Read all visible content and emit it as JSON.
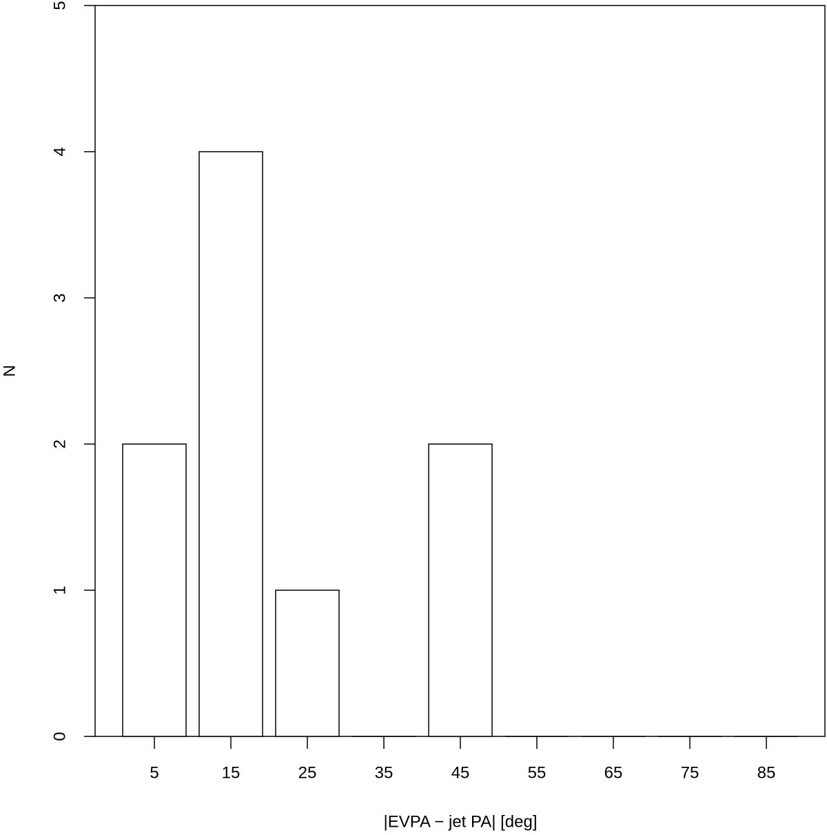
{
  "chart_data": {
    "type": "bar",
    "x_label": "|EVPA − jet PA| [deg]",
    "y_label": "N",
    "categories": [
      "5",
      "15",
      "25",
      "35",
      "45",
      "55",
      "65",
      "75",
      "85"
    ],
    "values": [
      2,
      4,
      1,
      0,
      2,
      0,
      0,
      0,
      0
    ],
    "color": "#ffffff",
    "ylim": [
      0,
      5
    ],
    "yticks": [
      0,
      1,
      2,
      3,
      4,
      5
    ]
  }
}
